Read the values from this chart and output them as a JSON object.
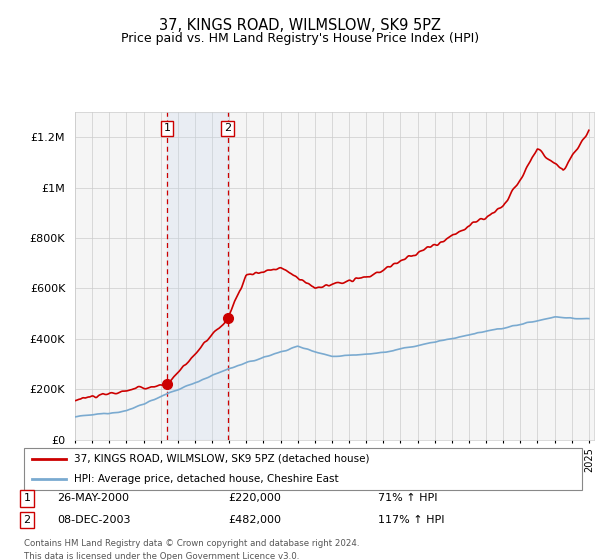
{
  "title": "37, KINGS ROAD, WILMSLOW, SK9 5PZ",
  "subtitle": "Price paid vs. HM Land Registry's House Price Index (HPI)",
  "property_label": "37, KINGS ROAD, WILMSLOW, SK9 5PZ (detached house)",
  "hpi_label": "HPI: Average price, detached house, Cheshire East",
  "sale1_date": "26-MAY-2000",
  "sale1_price": "£220,000",
  "sale1_hpi": "71% ↑ HPI",
  "sale2_date": "08-DEC-2003",
  "sale2_price": "£482,000",
  "sale2_hpi": "117% ↑ HPI",
  "sale1_year": 2000.38,
  "sale1_value": 220000,
  "sale2_year": 2003.92,
  "sale2_value": 482000,
  "property_color": "#cc0000",
  "hpi_color": "#7aaad0",
  "shade_color": "#ddeeff",
  "vline_color": "#cc0000",
  "footnote": "Contains HM Land Registry data © Crown copyright and database right 2024.\nThis data is licensed under the Open Government Licence v3.0.",
  "ylim": [
    0,
    1300000
  ],
  "background_color": "#ffffff"
}
